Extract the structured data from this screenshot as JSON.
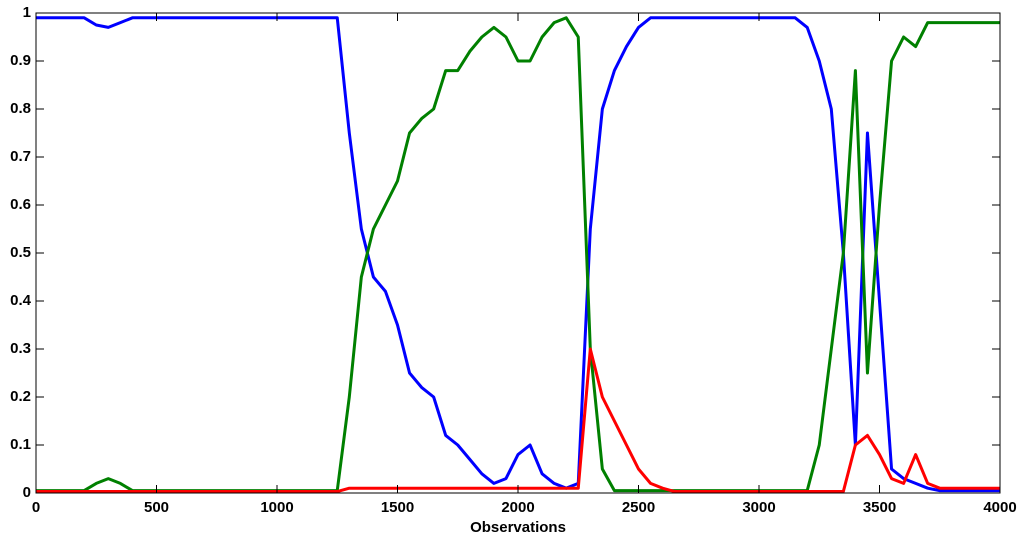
{
  "chart_data": {
    "type": "line",
    "xlabel": "Observations",
    "x": [
      0,
      50,
      100,
      150,
      200,
      250,
      300,
      350,
      400,
      450,
      500,
      550,
      600,
      650,
      700,
      750,
      800,
      850,
      900,
      950,
      1000,
      1050,
      1100,
      1150,
      1200,
      1250,
      1300,
      1350,
      1400,
      1450,
      1500,
      1550,
      1600,
      1650,
      1700,
      1750,
      1800,
      1850,
      1900,
      1950,
      2000,
      2050,
      2100,
      2150,
      2200,
      2250,
      2300,
      2350,
      2400,
      2450,
      2500,
      2550,
      2600,
      2650,
      2700,
      2750,
      2800,
      2850,
      2900,
      2950,
      3000,
      3050,
      3100,
      3150,
      3200,
      3250,
      3300,
      3350,
      3400,
      3450,
      3500,
      3550,
      3600,
      3650,
      3700,
      3750,
      3800,
      3850,
      3900,
      3950,
      4000
    ],
    "series": [
      {
        "name": "blue",
        "color": "#0000ff",
        "values": [
          0.99,
          0.99,
          0.99,
          0.99,
          0.99,
          0.975,
          0.97,
          0.98,
          0.99,
          0.99,
          0.99,
          0.99,
          0.99,
          0.99,
          0.99,
          0.99,
          0.99,
          0.99,
          0.99,
          0.99,
          0.99,
          0.99,
          0.99,
          0.99,
          0.99,
          0.99,
          0.75,
          0.55,
          0.45,
          0.42,
          0.35,
          0.25,
          0.22,
          0.2,
          0.12,
          0.1,
          0.07,
          0.04,
          0.02,
          0.03,
          0.08,
          0.1,
          0.04,
          0.02,
          0.01,
          0.02,
          0.55,
          0.8,
          0.88,
          0.93,
          0.97,
          0.99,
          0.99,
          0.99,
          0.99,
          0.99,
          0.99,
          0.99,
          0.99,
          0.99,
          0.99,
          0.99,
          0.99,
          0.99,
          0.97,
          0.9,
          0.8,
          0.5,
          0.1,
          0.75,
          0.4,
          0.05,
          0.03,
          0.02,
          0.01,
          0.005,
          0.005,
          0.005,
          0.005,
          0.005,
          0.005
        ]
      },
      {
        "name": "green",
        "color": "#008000",
        "values": [
          0.005,
          0.005,
          0.005,
          0.005,
          0.005,
          0.02,
          0.03,
          0.02,
          0.005,
          0.005,
          0.005,
          0.005,
          0.005,
          0.005,
          0.005,
          0.005,
          0.005,
          0.005,
          0.005,
          0.005,
          0.005,
          0.005,
          0.005,
          0.005,
          0.005,
          0.005,
          0.2,
          0.45,
          0.55,
          0.6,
          0.65,
          0.75,
          0.78,
          0.8,
          0.88,
          0.88,
          0.92,
          0.95,
          0.97,
          0.95,
          0.9,
          0.9,
          0.95,
          0.98,
          0.99,
          0.95,
          0.3,
          0.05,
          0.005,
          0.005,
          0.005,
          0.005,
          0.005,
          0.005,
          0.005,
          0.005,
          0.005,
          0.005,
          0.005,
          0.005,
          0.005,
          0.005,
          0.005,
          0.005,
          0.005,
          0.1,
          0.3,
          0.5,
          0.88,
          0.25,
          0.6,
          0.9,
          0.95,
          0.93,
          0.98,
          0.98,
          0.98,
          0.98,
          0.98,
          0.98,
          0.98
        ]
      },
      {
        "name": "red",
        "color": "#ff0000",
        "values": [
          0.003,
          0.003,
          0.003,
          0.003,
          0.003,
          0.003,
          0.003,
          0.003,
          0.003,
          0.003,
          0.003,
          0.003,
          0.003,
          0.003,
          0.003,
          0.003,
          0.003,
          0.003,
          0.003,
          0.003,
          0.003,
          0.003,
          0.003,
          0.003,
          0.003,
          0.003,
          0.01,
          0.01,
          0.01,
          0.01,
          0.01,
          0.01,
          0.01,
          0.01,
          0.01,
          0.01,
          0.01,
          0.01,
          0.01,
          0.01,
          0.01,
          0.01,
          0.01,
          0.01,
          0.01,
          0.01,
          0.3,
          0.2,
          0.15,
          0.1,
          0.05,
          0.02,
          0.01,
          0.003,
          0.003,
          0.003,
          0.003,
          0.003,
          0.003,
          0.003,
          0.003,
          0.003,
          0.003,
          0.003,
          0.003,
          0.003,
          0.003,
          0.003,
          0.1,
          0.12,
          0.08,
          0.03,
          0.02,
          0.08,
          0.02,
          0.01,
          0.01,
          0.01,
          0.01,
          0.01,
          0.01
        ]
      }
    ],
    "xlim": [
      0,
      4000
    ],
    "xticks": [
      0,
      500,
      1000,
      1500,
      2000,
      2500,
      3000,
      3500,
      4000
    ],
    "ylim": [
      0,
      1
    ],
    "yticks": [
      0,
      0.1,
      0.2,
      0.3,
      0.4,
      0.5,
      0.6,
      0.7,
      0.8,
      0.9,
      1
    ]
  }
}
